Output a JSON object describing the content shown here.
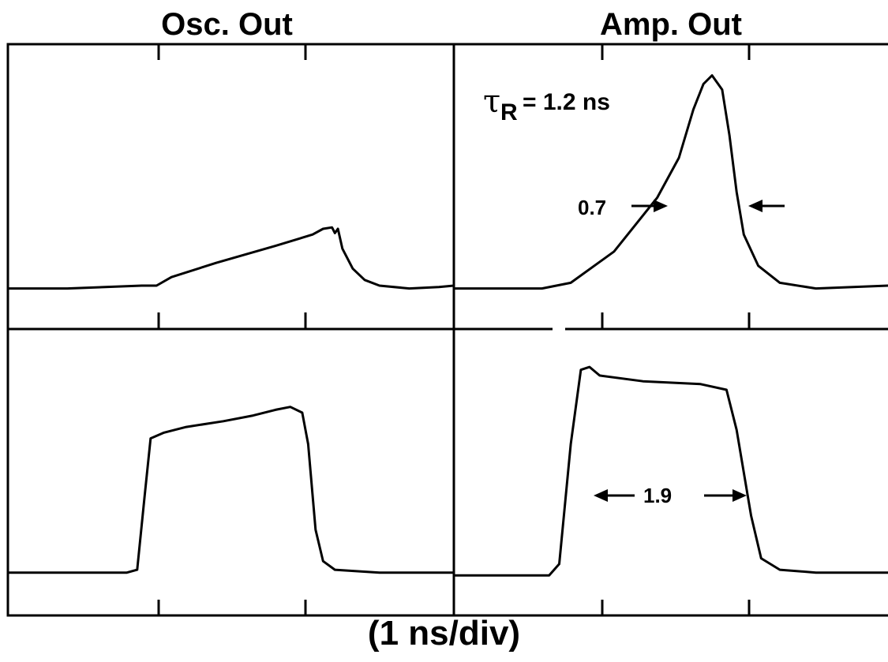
{
  "titles": {
    "left": "Osc. Out",
    "right": "Amp. Out"
  },
  "xlabel": "(1 ns/div)",
  "annotations": {
    "tau_symbol": "τ",
    "tau_sub": "R",
    "tau_text": "= 1.2 ns",
    "width_top": "0.7",
    "width_bottom": "1.9"
  },
  "chart_data": [
    {
      "type": "line",
      "panel": "top-left",
      "title": "Osc. Out",
      "xlabel": "(1 ns/div)",
      "xlim": [
        0,
        3
      ],
      "ylim": [
        0,
        1
      ],
      "grid": false,
      "series": [
        {
          "points": [
            [
              0,
              0.14
            ],
            [
              0.4,
              0.14
            ],
            [
              0.9,
              0.15
            ],
            [
              1.0,
              0.15
            ],
            [
              1.1,
              0.18
            ],
            [
              1.4,
              0.23
            ],
            [
              1.8,
              0.29
            ],
            [
              2.05,
              0.33
            ],
            [
              2.12,
              0.35
            ],
            [
              2.18,
              0.355
            ],
            [
              2.2,
              0.335
            ],
            [
              2.22,
              0.35
            ],
            [
              2.25,
              0.28
            ],
            [
              2.32,
              0.21
            ],
            [
              2.4,
              0.17
            ],
            [
              2.5,
              0.15
            ],
            [
              2.7,
              0.14
            ],
            [
              2.9,
              0.145
            ],
            [
              3,
              0.15
            ]
          ]
        }
      ]
    },
    {
      "type": "line",
      "panel": "top-right",
      "title": "Amp. Out",
      "xlabel": "(1 ns/div)",
      "xlim": [
        0,
        3
      ],
      "ylim": [
        0,
        1
      ],
      "grid": false,
      "series": [
        {
          "points": [
            [
              0,
              0.14
            ],
            [
              0.6,
              0.14
            ],
            [
              0.8,
              0.16
            ],
            [
              1.1,
              0.27
            ],
            [
              1.4,
              0.46
            ],
            [
              1.55,
              0.6
            ],
            [
              1.65,
              0.77
            ],
            [
              1.72,
              0.86
            ],
            [
              1.78,
              0.89
            ],
            [
              1.85,
              0.84
            ],
            [
              1.9,
              0.68
            ],
            [
              1.95,
              0.48
            ],
            [
              2.0,
              0.33
            ],
            [
              2.1,
              0.22
            ],
            [
              2.25,
              0.16
            ],
            [
              2.5,
              0.14
            ],
            [
              3,
              0.15
            ]
          ]
        }
      ]
    },
    {
      "type": "line",
      "panel": "bottom-left",
      "title": "",
      "xlabel": "(1 ns/div)",
      "xlim": [
        0,
        3
      ],
      "ylim": [
        0,
        1
      ],
      "grid": false,
      "series": [
        {
          "points": [
            [
              0,
              0.15
            ],
            [
              0.8,
              0.15
            ],
            [
              0.87,
              0.16
            ],
            [
              0.92,
              0.42
            ],
            [
              0.96,
              0.62
            ],
            [
              1.05,
              0.64
            ],
            [
              1.2,
              0.66
            ],
            [
              1.45,
              0.68
            ],
            [
              1.65,
              0.7
            ],
            [
              1.8,
              0.72
            ],
            [
              1.9,
              0.73
            ],
            [
              1.98,
              0.71
            ],
            [
              2.02,
              0.6
            ],
            [
              2.07,
              0.3
            ],
            [
              2.12,
              0.19
            ],
            [
              2.2,
              0.16
            ],
            [
              2.5,
              0.15
            ],
            [
              3,
              0.15
            ]
          ]
        }
      ]
    },
    {
      "type": "line",
      "panel": "bottom-right",
      "title": "",
      "xlabel": "(1 ns/div)",
      "xlim": [
        0,
        3
      ],
      "ylim": [
        0,
        1
      ],
      "grid": false,
      "series": [
        {
          "points": [
            [
              0,
              0.14
            ],
            [
              0.65,
              0.14
            ],
            [
              0.72,
              0.18
            ],
            [
              0.8,
              0.6
            ],
            [
              0.87,
              0.86
            ],
            [
              0.93,
              0.87
            ],
            [
              1.0,
              0.84
            ],
            [
              1.3,
              0.82
            ],
            [
              1.7,
              0.81
            ],
            [
              1.88,
              0.79
            ],
            [
              1.95,
              0.65
            ],
            [
              2.05,
              0.35
            ],
            [
              2.12,
              0.2
            ],
            [
              2.25,
              0.16
            ],
            [
              2.5,
              0.15
            ],
            [
              3,
              0.15
            ]
          ]
        }
      ]
    }
  ]
}
